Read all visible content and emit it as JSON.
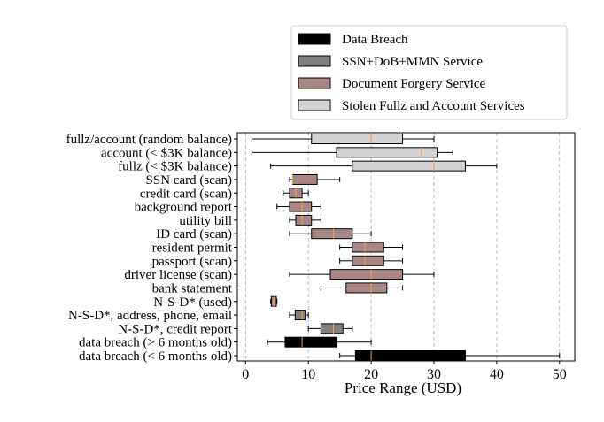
{
  "chart_data": {
    "type": "boxplot-horizontal",
    "xlabel": "Price Range (USD)",
    "xlim": [
      -1.2,
      52.5
    ],
    "xticks": [
      0,
      10,
      20,
      30,
      40,
      50
    ],
    "grid": "vertical dashed",
    "legend_placement": "top-right, above plot",
    "categories_legend": [
      {
        "name": "Data Breach",
        "color": "#000000"
      },
      {
        "name": "SSN+DoB+MMN Service",
        "color": "#808080"
      },
      {
        "name": "Document Forgery Service",
        "color": "#a88686"
      },
      {
        "name": "Stolen Fullz and Account Services",
        "color": "#d3d3d3"
      }
    ],
    "median_color": "#f0a040",
    "rows": [
      {
        "label": "fullz/account (random balance)",
        "group": 3,
        "whislo": 1,
        "q1": 10.5,
        "med": 20,
        "q3": 25,
        "whishi": 30
      },
      {
        "label": "account (< $3K balance)",
        "group": 3,
        "whislo": 1,
        "q1": 14.5,
        "med": 28,
        "q3": 30.5,
        "whishi": 33
      },
      {
        "label": "fullz (< $3K balance)",
        "group": 3,
        "whislo": 4,
        "q1": 17,
        "med": 30,
        "q3": 35,
        "whishi": 40
      },
      {
        "label": "SSN card (scan)",
        "group": 2,
        "whislo": 7,
        "q1": 7.5,
        "med": 7.5,
        "q3": 11.4,
        "whishi": 15
      },
      {
        "label": "credit card (scan)",
        "group": 2,
        "whislo": 6,
        "q1": 7,
        "med": 8,
        "q3": 9,
        "whishi": 10
      },
      {
        "label": "background report",
        "group": 2,
        "whislo": 5,
        "q1": 7,
        "med": 9,
        "q3": 10.5,
        "whishi": 12
      },
      {
        "label": "utility bill",
        "group": 2,
        "whislo": 7,
        "q1": 8,
        "med": 9,
        "q3": 10.5,
        "whishi": 12
      },
      {
        "label": "ID card (scan)",
        "group": 2,
        "whislo": 7,
        "q1": 10.5,
        "med": 14,
        "q3": 17,
        "whishi": 20
      },
      {
        "label": "resident permit",
        "group": 2,
        "whislo": 15,
        "q1": 17,
        "med": 19,
        "q3": 22,
        "whishi": 25
      },
      {
        "label": "passport (scan)",
        "group": 2,
        "whislo": 15,
        "q1": 17,
        "med": 19,
        "q3": 22,
        "whishi": 25
      },
      {
        "label": "driver license (scan)",
        "group": 2,
        "whislo": 7,
        "q1": 13.5,
        "med": 20,
        "q3": 25,
        "whishi": 30
      },
      {
        "label": "bank statement",
        "group": 2,
        "whislo": 12,
        "q1": 16,
        "med": 20,
        "q3": 22.5,
        "whishi": 25
      },
      {
        "label": "N-S-D* (used)",
        "group": 2,
        "whislo": 4,
        "q1": 4.1,
        "med": 4.5,
        "q3": 4.9,
        "whishi": 5
      },
      {
        "label": "N-S-D*, address, phone, email",
        "group": 1,
        "whislo": 7,
        "q1": 7.9,
        "med": 9,
        "q3": 9.5,
        "whishi": 10
      },
      {
        "label": "N-S-D*, credit report",
        "group": 1,
        "whislo": 10,
        "q1": 12,
        "med": 14,
        "q3": 15.5,
        "whishi": 17
      },
      {
        "label": "data breach (> 6 months old)",
        "group": 0,
        "whislo": 3.5,
        "q1": 6.3,
        "med": 9,
        "q3": 14.5,
        "whishi": 20
      },
      {
        "label": "data breach (< 6 months old)",
        "group": 0,
        "whislo": 15,
        "q1": 17.5,
        "med": 20,
        "q3": 35,
        "whishi": 50
      }
    ]
  }
}
